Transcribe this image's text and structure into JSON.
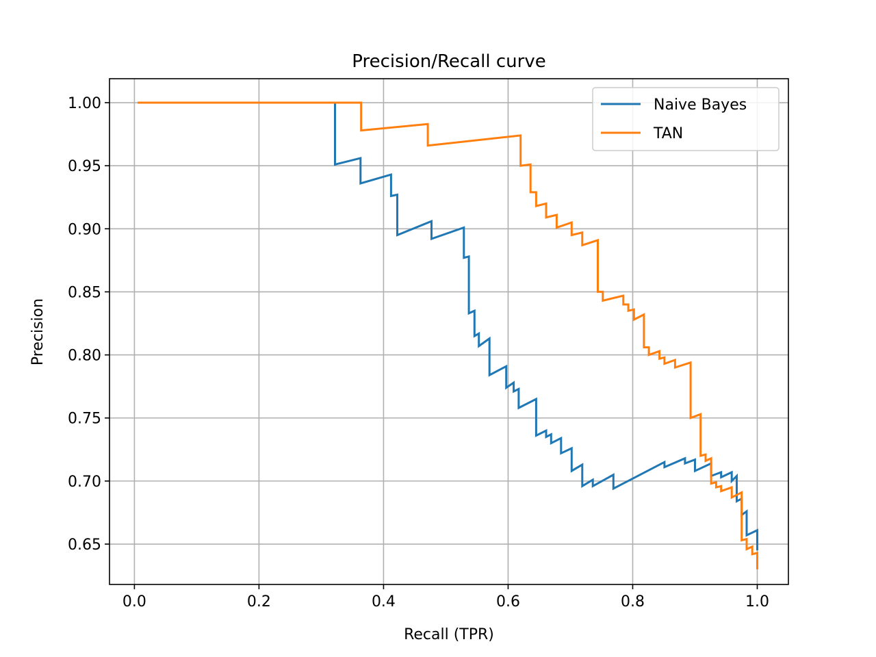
{
  "chart_data": {
    "type": "line",
    "title": "Precision/Recall curve",
    "xlabel": "Recall (TPR)",
    "ylabel": "Precision",
    "xlim": [
      -0.04,
      1.05
    ],
    "ylim": [
      0.618,
      1.019
    ],
    "xticks": [
      0.0,
      0.2,
      0.4,
      0.6,
      0.8,
      1.0
    ],
    "xtick_labels": [
      "0.0",
      "0.2",
      "0.4",
      "0.6",
      "0.8",
      "1.0"
    ],
    "yticks": [
      0.65,
      0.7,
      0.75,
      0.8,
      0.85,
      0.9,
      0.95,
      1.0
    ],
    "ytick_labels": [
      "0.65",
      "0.70",
      "0.75",
      "0.80",
      "0.85",
      "0.90",
      "0.95",
      "1.00"
    ],
    "grid": true,
    "legend_position": "top-right",
    "series": [
      {
        "name": "Naive Bayes",
        "color": "#1f77b4",
        "points": [
          [
            0.005,
            1.0
          ],
          [
            0.322,
            1.0
          ],
          [
            0.322,
            0.951
          ],
          [
            0.363,
            0.956
          ],
          [
            0.363,
            0.936
          ],
          [
            0.412,
            0.943
          ],
          [
            0.412,
            0.926
          ],
          [
            0.422,
            0.927
          ],
          [
            0.422,
            0.895
          ],
          [
            0.477,
            0.906
          ],
          [
            0.477,
            0.892
          ],
          [
            0.529,
            0.901
          ],
          [
            0.529,
            0.877
          ],
          [
            0.537,
            0.878
          ],
          [
            0.537,
            0.833
          ],
          [
            0.546,
            0.835
          ],
          [
            0.546,
            0.815
          ],
          [
            0.553,
            0.817
          ],
          [
            0.553,
            0.807
          ],
          [
            0.57,
            0.813
          ],
          [
            0.57,
            0.784
          ],
          [
            0.597,
            0.791
          ],
          [
            0.597,
            0.774
          ],
          [
            0.609,
            0.778
          ],
          [
            0.609,
            0.771
          ],
          [
            0.617,
            0.773
          ],
          [
            0.617,
            0.758
          ],
          [
            0.645,
            0.765
          ],
          [
            0.645,
            0.736
          ],
          [
            0.661,
            0.74
          ],
          [
            0.661,
            0.735
          ],
          [
            0.669,
            0.737
          ],
          [
            0.669,
            0.73
          ],
          [
            0.685,
            0.734
          ],
          [
            0.685,
            0.722
          ],
          [
            0.702,
            0.726
          ],
          [
            0.702,
            0.708
          ],
          [
            0.719,
            0.713
          ],
          [
            0.719,
            0.696
          ],
          [
            0.736,
            0.701
          ],
          [
            0.736,
            0.696
          ],
          [
            0.769,
            0.705
          ],
          [
            0.769,
            0.694
          ],
          [
            0.851,
            0.715
          ],
          [
            0.851,
            0.711
          ],
          [
            0.884,
            0.718
          ],
          [
            0.884,
            0.714
          ],
          [
            0.9,
            0.717
          ],
          [
            0.9,
            0.708
          ],
          [
            0.926,
            0.714
          ],
          [
            0.926,
            0.704
          ],
          [
            0.942,
            0.707
          ],
          [
            0.942,
            0.703
          ],
          [
            0.959,
            0.707
          ],
          [
            0.959,
            0.7
          ],
          [
            0.967,
            0.704
          ],
          [
            0.967,
            0.684
          ],
          [
            0.975,
            0.686
          ],
          [
            0.975,
            0.673
          ],
          [
            0.983,
            0.676
          ],
          [
            0.983,
            0.657
          ],
          [
            1.0,
            0.661
          ],
          [
            1.0,
            0.645
          ]
        ]
      },
      {
        "name": "TAN",
        "color": "#ff7f0e",
        "points": [
          [
            0.005,
            1.0
          ],
          [
            0.364,
            1.0
          ],
          [
            0.364,
            0.978
          ],
          [
            0.471,
            0.983
          ],
          [
            0.471,
            0.966
          ],
          [
            0.62,
            0.974
          ],
          [
            0.62,
            0.95
          ],
          [
            0.636,
            0.951
          ],
          [
            0.636,
            0.929
          ],
          [
            0.645,
            0.929
          ],
          [
            0.645,
            0.918
          ],
          [
            0.661,
            0.92
          ],
          [
            0.661,
            0.909
          ],
          [
            0.678,
            0.911
          ],
          [
            0.678,
            0.901
          ],
          [
            0.702,
            0.905
          ],
          [
            0.702,
            0.895
          ],
          [
            0.719,
            0.897
          ],
          [
            0.719,
            0.887
          ],
          [
            0.744,
            0.891
          ],
          [
            0.744,
            0.85
          ],
          [
            0.752,
            0.85
          ],
          [
            0.752,
            0.843
          ],
          [
            0.785,
            0.847
          ],
          [
            0.785,
            0.84
          ],
          [
            0.793,
            0.84
          ],
          [
            0.793,
            0.835
          ],
          [
            0.802,
            0.836
          ],
          [
            0.802,
            0.828
          ],
          [
            0.818,
            0.832
          ],
          [
            0.818,
            0.806
          ],
          [
            0.826,
            0.806
          ],
          [
            0.826,
            0.8
          ],
          [
            0.843,
            0.803
          ],
          [
            0.843,
            0.797
          ],
          [
            0.851,
            0.798
          ],
          [
            0.851,
            0.793
          ],
          [
            0.868,
            0.796
          ],
          [
            0.868,
            0.79
          ],
          [
            0.893,
            0.794
          ],
          [
            0.893,
            0.75
          ],
          [
            0.909,
            0.753
          ],
          [
            0.909,
            0.72
          ],
          [
            0.917,
            0.721
          ],
          [
            0.917,
            0.716
          ],
          [
            0.926,
            0.718
          ],
          [
            0.926,
            0.698
          ],
          [
            0.934,
            0.699
          ],
          [
            0.934,
            0.695
          ],
          [
            0.942,
            0.696
          ],
          [
            0.942,
            0.692
          ],
          [
            0.959,
            0.695
          ],
          [
            0.959,
            0.687
          ],
          [
            0.975,
            0.691
          ],
          [
            0.975,
            0.653
          ],
          [
            0.983,
            0.654
          ],
          [
            0.983,
            0.646
          ],
          [
            0.992,
            0.648
          ],
          [
            0.992,
            0.642
          ],
          [
            1.0,
            0.643
          ],
          [
            1.0,
            0.63
          ]
        ]
      }
    ]
  }
}
